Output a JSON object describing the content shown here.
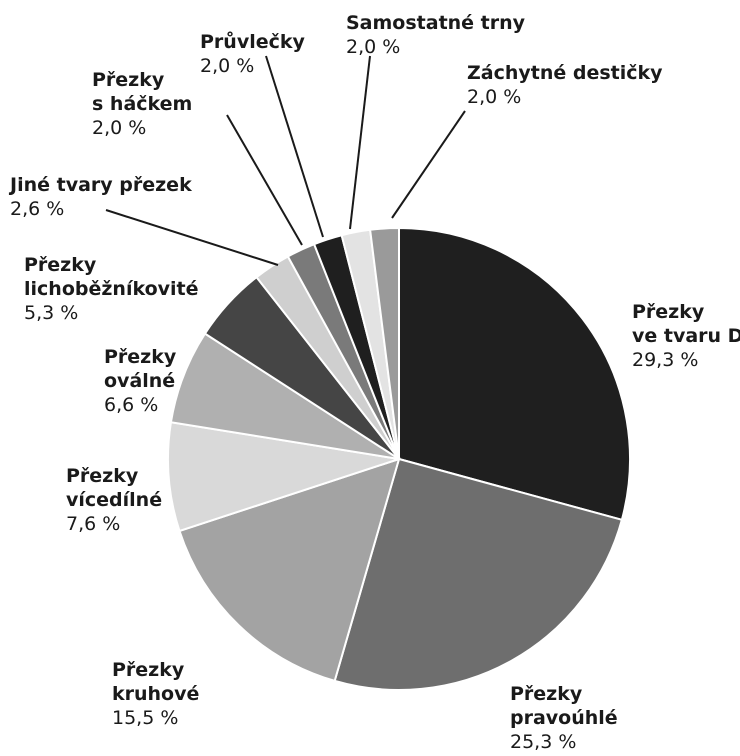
{
  "chart_data": {
    "type": "pie",
    "slices": [
      {
        "name_lines": [
          "Přezky",
          "ve tvaru D"
        ],
        "value": 29.3,
        "value_label": "29,3 %",
        "color": "#1f1f1f"
      },
      {
        "name_lines": [
          "Přezky",
          "pravoúhlé"
        ],
        "value": 25.3,
        "value_label": "25,3 %",
        "color": "#6e6e6e"
      },
      {
        "name_lines": [
          "Přezky",
          "kruhové"
        ],
        "value": 15.5,
        "value_label": "15,5 %",
        "color": "#a3a3a3"
      },
      {
        "name_lines": [
          "Přezky",
          "vícedílné"
        ],
        "value": 7.6,
        "value_label": "7,6 %",
        "color": "#d9d9d9"
      },
      {
        "name_lines": [
          "Přezky",
          "oválné"
        ],
        "value": 6.6,
        "value_label": "6,6 %",
        "color": "#b0b0b0"
      },
      {
        "name_lines": [
          "Přezky",
          "lichoběžníkovité"
        ],
        "value": 5.3,
        "value_label": "5,3 %",
        "color": "#454545"
      },
      {
        "name_lines": [
          "Jiné tvary přezek"
        ],
        "value": 2.6,
        "value_label": "2,6 %",
        "color": "#cfcfcf"
      },
      {
        "name_lines": [
          "Přezky",
          "s háčkem"
        ],
        "value": 2.0,
        "value_label": "2,0 %",
        "color": "#7a7a7a"
      },
      {
        "name_lines": [
          "Průvlečky"
        ],
        "value": 2.0,
        "value_label": "2,0 %",
        "color": "#1f1f1f"
      },
      {
        "name_lines": [
          "Samostatné trny"
        ],
        "value": 2.0,
        "value_label": "2,0 %",
        "color": "#e3e3e3"
      },
      {
        "name_lines": [
          "Záchytné destičky"
        ],
        "value": 2.0,
        "value_label": "2,0 %",
        "color": "#9a9a9a"
      }
    ]
  }
}
